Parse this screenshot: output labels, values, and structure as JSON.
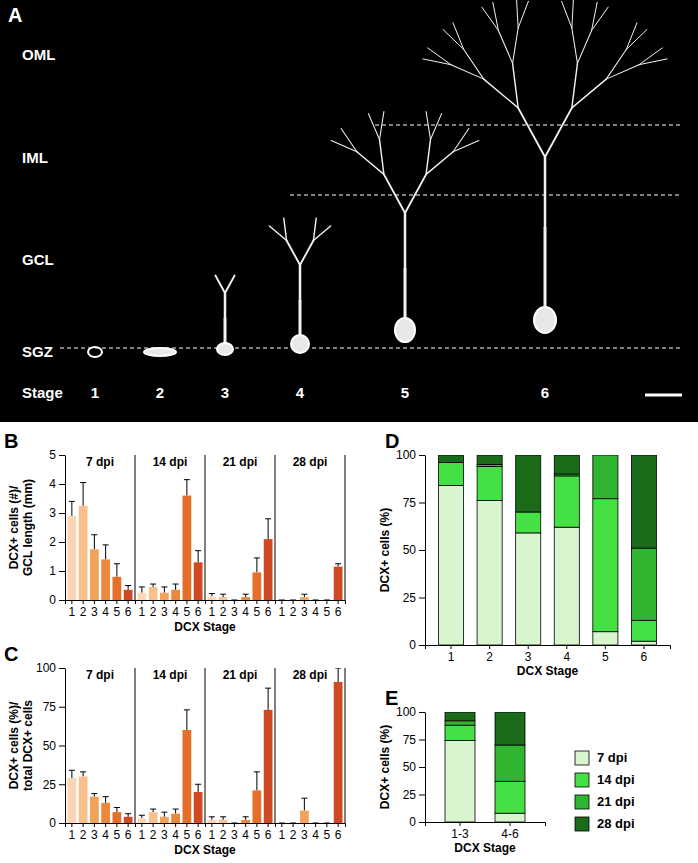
{
  "image_panel": {
    "panel_label": "A",
    "layers": [
      "OML",
      "IML",
      "GCL",
      "SGZ"
    ],
    "stage_label": "Stage",
    "stages": [
      "1",
      "2",
      "3",
      "4",
      "5",
      "6"
    ]
  },
  "chart_data": [
    {
      "type": "bar",
      "panel_label": "B",
      "ylabel": [
        "DCX+ cells (#)/",
        "GCL length (mm)"
      ],
      "xlabel": "DCX Stage",
      "categories": [
        "1",
        "2",
        "3",
        "4",
        "5",
        "6"
      ],
      "colors": [
        "#fcd6b4",
        "#f9c08d",
        "#f3a25a",
        "#ed883b",
        "#e36f29",
        "#cf4924"
      ],
      "ylim": [
        0,
        5
      ],
      "yticks": [
        0,
        1,
        2,
        3,
        4,
        5
      ],
      "series": [
        {
          "name": "7 dpi",
          "values": [
            2.9,
            3.25,
            1.75,
            1.4,
            0.8,
            0.35
          ],
          "errors": [
            0.5,
            0.8,
            0.5,
            0.5,
            0.45,
            0.15
          ]
        },
        {
          "name": "14 dpi",
          "values": [
            0.25,
            0.45,
            0.25,
            0.35,
            3.6,
            1.3
          ],
          "errors": [
            0.2,
            0.1,
            0.2,
            0.2,
            0.55,
            0.4
          ]
        },
        {
          "name": "21 dpi",
          "values": [
            0.12,
            0.1,
            0,
            0.1,
            0.95,
            2.1
          ],
          "errors": [
            0.1,
            0.1,
            0,
            0.1,
            0.5,
            0.7
          ]
        },
        {
          "name": "28 dpi",
          "values": [
            0,
            0,
            0.1,
            0,
            0,
            1.15
          ],
          "errors": [
            0,
            0,
            0.1,
            0,
            0,
            0.1
          ]
        }
      ]
    },
    {
      "type": "bar",
      "panel_label": "C",
      "ylabel": [
        "DCX+ cells (%)/",
        "total DCX+ cells"
      ],
      "xlabel": "DCX Stage",
      "categories": [
        "1",
        "2",
        "3",
        "4",
        "5",
        "6"
      ],
      "colors": [
        "#fcd6b4",
        "#f9c08d",
        "#f3a25a",
        "#ed883b",
        "#e36f29",
        "#cf4924"
      ],
      "ylim": [
        0,
        100
      ],
      "yticks": [
        0,
        25,
        50,
        75,
        100
      ],
      "series": [
        {
          "name": "7 dpi",
          "values": [
            29,
            30,
            17,
            13,
            7,
            4
          ],
          "errors": [
            5,
            3,
            2,
            4,
            3,
            2
          ]
        },
        {
          "name": "14 dpi",
          "values": [
            3,
            7,
            4,
            6,
            60,
            20
          ],
          "errors": [
            2,
            2,
            3,
            3,
            13,
            5
          ]
        },
        {
          "name": "21 dpi",
          "values": [
            2,
            2,
            0,
            2,
            21,
            73
          ],
          "errors": [
            2,
            2,
            0,
            2,
            12,
            14
          ]
        },
        {
          "name": "28 dpi",
          "values": [
            0,
            0,
            8,
            0,
            0,
            91
          ],
          "errors": [
            0,
            0,
            8,
            0,
            0,
            9
          ]
        }
      ]
    },
    {
      "type": "bar",
      "stacked": true,
      "panel_label": "D",
      "ylabel": "DCX+ cells (%)",
      "xlabel": "DCX Stage",
      "categories": [
        "1",
        "2",
        "3",
        "4",
        "5",
        "6"
      ],
      "ylim": [
        0,
        100
      ],
      "yticks": [
        0,
        25,
        50,
        75,
        100
      ],
      "series": [
        {
          "color": "#d8f5d0",
          "values": [
            84,
            76,
            59,
            62,
            7,
            2
          ]
        },
        {
          "color": "#44e044",
          "values": [
            12,
            18,
            11,
            27,
            70,
            11
          ]
        },
        {
          "color": "#2fb52f",
          "values": [
            0,
            1,
            0,
            1,
            23,
            38
          ]
        },
        {
          "color": "#1b6b1b",
          "values": [
            4,
            5,
            30,
            10,
            0,
            49
          ]
        }
      ]
    },
    {
      "type": "bar",
      "stacked": true,
      "panel_label": "E",
      "ylabel": "DCX+ cells (%)",
      "xlabel": "DCX Stage",
      "categories": [
        "1-3",
        "4-6"
      ],
      "legend": "right",
      "ylim": [
        0,
        100
      ],
      "yticks": [
        0,
        25,
        50,
        75,
        100
      ],
      "series": [
        {
          "name": "7 dpi",
          "color": "#d8f5d0",
          "values": [
            74,
            8
          ]
        },
        {
          "name": "14 dpi",
          "color": "#44e044",
          "values": [
            14,
            29
          ]
        },
        {
          "name": "21 dpi",
          "color": "#2fb52f",
          "values": [
            4,
            33
          ]
        },
        {
          "name": "28 dpi",
          "color": "#1b6b1b",
          "values": [
            8,
            30
          ]
        }
      ]
    }
  ]
}
